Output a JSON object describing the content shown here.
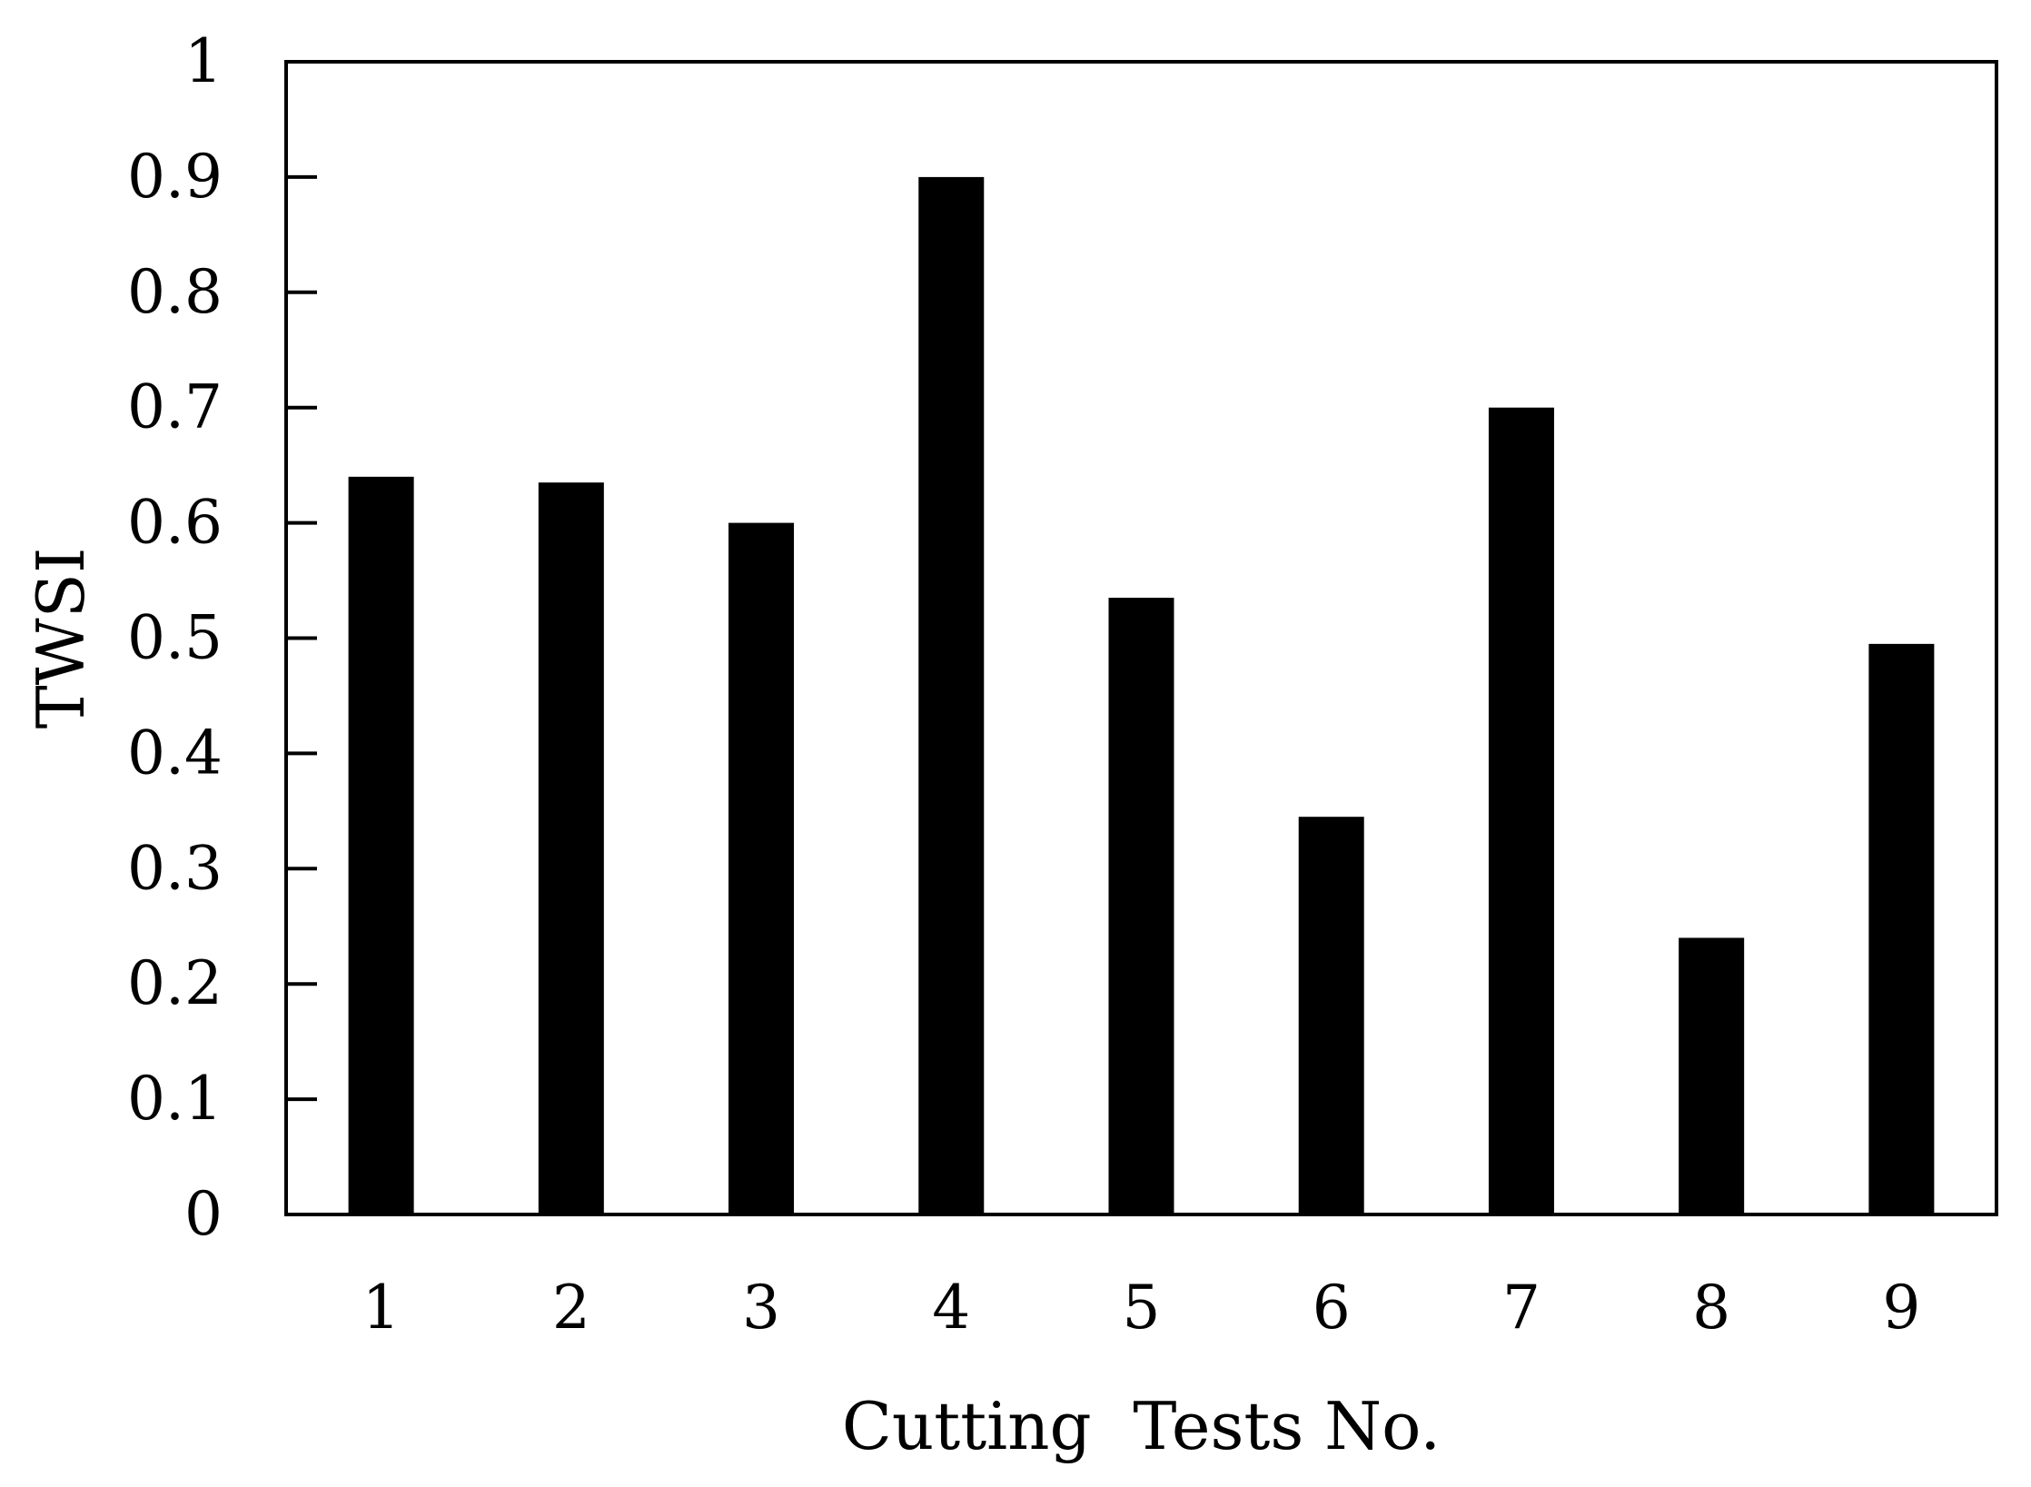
{
  "chart_data": {
    "type": "bar",
    "title": "",
    "xlabel": "Cutting  Tests No.",
    "ylabel": "TWSI",
    "categories": [
      "1",
      "2",
      "3",
      "4",
      "5",
      "6",
      "7",
      "8",
      "9"
    ],
    "values": [
      0.64,
      0.635,
      0.6,
      0.9,
      0.535,
      0.345,
      0.7,
      0.24,
      0.495
    ],
    "ylim": [
      0,
      1
    ],
    "yticks": [
      "0",
      "0.1",
      "0.2",
      "0.3",
      "0.4",
      "0.5",
      "0.6",
      "0.7",
      "0.8",
      "0.9",
      "1"
    ],
    "grid": false,
    "legend": "none",
    "bar_color": "#000000"
  }
}
